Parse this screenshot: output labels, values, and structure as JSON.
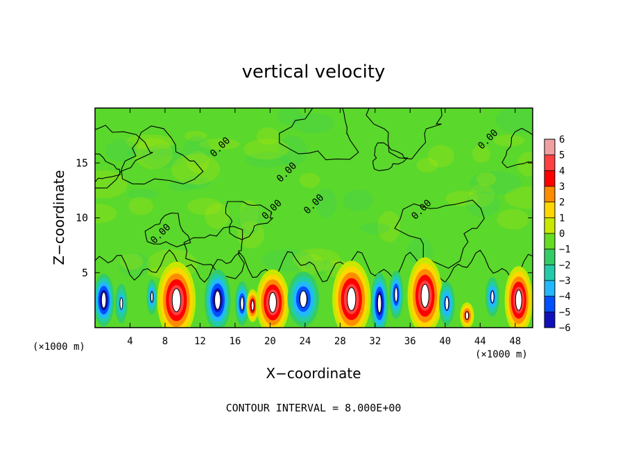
{
  "chart_data": {
    "type": "heatmap",
    "title": "vertical velocity",
    "xlabel": "X−coordinate",
    "ylabel": "Z−coordinate",
    "x_unit_left": "(×1000 m)",
    "x_unit_right": "(×1000 m)",
    "xlim": [
      0,
      50
    ],
    "ylim": [
      0,
      20
    ],
    "x_ticks": [
      4,
      8,
      12,
      16,
      20,
      24,
      28,
      32,
      36,
      40,
      44,
      48
    ],
    "y_ticks": [
      5,
      10,
      15
    ],
    "x_tick_labels": [
      "4",
      "8",
      "12",
      "16",
      "20",
      "24",
      "28",
      "32",
      "36",
      "40",
      "44",
      "48"
    ],
    "y_tick_labels": [
      "5",
      "10",
      "15"
    ],
    "footer": "CONTOUR INTERVAL = 8.000E+00",
    "colorbar": {
      "levels": [
        6,
        5,
        4,
        3,
        2,
        1,
        0,
        -1,
        -2,
        -3,
        -4,
        -5,
        -6
      ],
      "labels": [
        "6",
        "5",
        "4",
        "3",
        "2",
        "1",
        "0",
        "−1",
        "−2",
        "−3",
        "−4",
        "−5",
        "−6"
      ],
      "colors": [
        "#f0a0a0",
        "#ff4040",
        "#ff0000",
        "#ff8c00",
        "#ffd700",
        "#c8e800",
        "#66dd22",
        "#33cc66",
        "#22ccaa",
        "#22b8ff",
        "#0050ff",
        "#1010bb",
        "#7a00a0"
      ]
    },
    "contour_labels": [
      {
        "text": "0.00",
        "x": 19.5,
        "z": 9.8
      },
      {
        "text": "0.00",
        "x": 13.6,
        "z": 15.5
      },
      {
        "text": "0.00",
        "x": 21.2,
        "z": 13.2
      },
      {
        "text": "0.00",
        "x": 24.3,
        "z": 10.3
      },
      {
        "text": "0.00",
        "x": 36.6,
        "z": 9.8
      },
      {
        "text": "0.00",
        "x": 44.2,
        "z": 16.2
      },
      {
        "text": "0.00",
        "x": 6.8,
        "z": 7.6
      }
    ],
    "background_value": 0,
    "cells": [
      {
        "x": 1.0,
        "z": 2.5,
        "w": -6,
        "hw": 1.2,
        "hh": 2.4
      },
      {
        "x": 3.0,
        "z": 2.2,
        "w": -3,
        "hw": 0.7,
        "hh": 1.8
      },
      {
        "x": 6.5,
        "z": 2.8,
        "w": -4,
        "hw": 0.6,
        "hh": 1.6
      },
      {
        "x": 9.3,
        "z": 2.5,
        "w": 6,
        "hw": 2.2,
        "hh": 3.5
      },
      {
        "x": 14.0,
        "z": 2.5,
        "w": -6,
        "hw": 1.5,
        "hh": 2.8
      },
      {
        "x": 16.8,
        "z": 2.2,
        "w": -5,
        "hw": 0.8,
        "hh": 2.0
      },
      {
        "x": 18.0,
        "z": 2.0,
        "w": 5,
        "hw": 0.7,
        "hh": 1.5
      },
      {
        "x": 20.3,
        "z": 2.3,
        "w": 6,
        "hw": 1.9,
        "hh": 3.0
      },
      {
        "x": 23.8,
        "z": 2.6,
        "w": -5,
        "hw": 1.8,
        "hh": 2.5
      },
      {
        "x": 29.3,
        "z": 2.6,
        "w": 6,
        "hw": 2.2,
        "hh": 3.5
      },
      {
        "x": 32.5,
        "z": 2.2,
        "w": -6,
        "hw": 1.0,
        "hh": 2.8
      },
      {
        "x": 34.4,
        "z": 3.0,
        "w": -5,
        "hw": 0.8,
        "hh": 2.2
      },
      {
        "x": 37.7,
        "z": 2.9,
        "w": 6,
        "hw": 2.0,
        "hh": 3.5
      },
      {
        "x": 40.2,
        "z": 2.2,
        "w": -4,
        "hw": 0.9,
        "hh": 2.0
      },
      {
        "x": 42.5,
        "z": 1.1,
        "w": 4,
        "hw": 0.8,
        "hh": 1.2
      },
      {
        "x": 45.4,
        "z": 2.8,
        "w": -4,
        "hw": 0.8,
        "hh": 1.8
      },
      {
        "x": 48.4,
        "z": 2.5,
        "w": 6,
        "hw": 1.6,
        "hh": 3.1
      }
    ]
  }
}
